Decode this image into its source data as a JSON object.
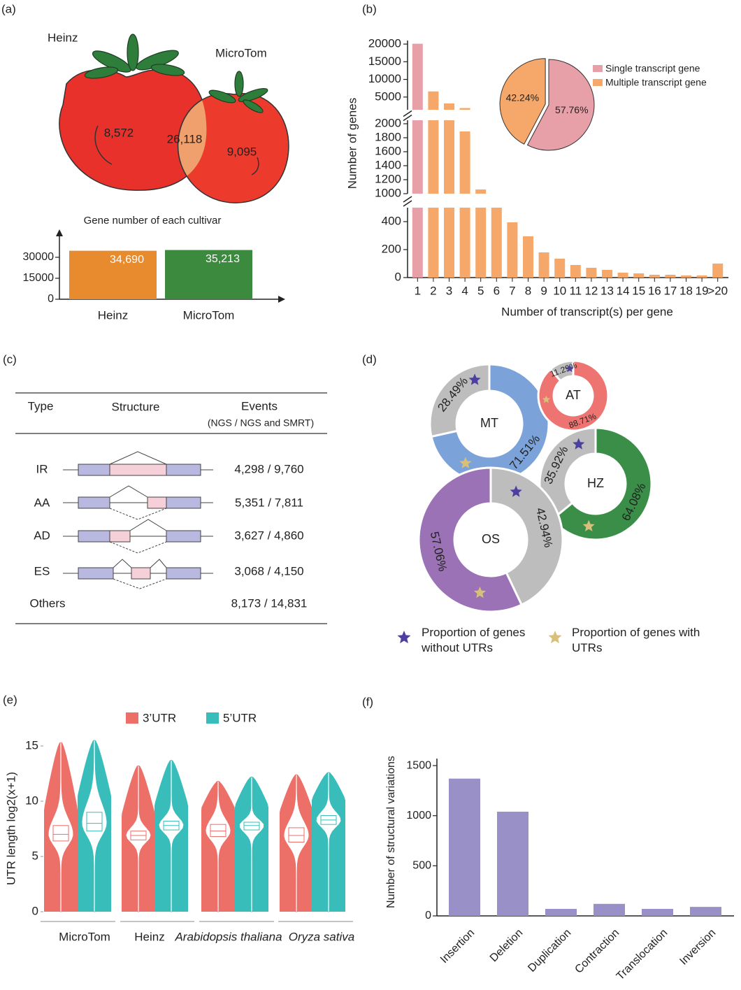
{
  "chart_data": [
    {
      "type": "venn",
      "panel": "(a)",
      "sets": [
        "Heinz",
        "MicroTom"
      ],
      "values": [
        8572,
        26118,
        9095
      ],
      "value_labels": [
        "8,572",
        "26,118",
        "9,095"
      ]
    },
    {
      "type": "bar",
      "title": "Gene number of each cultivar",
      "categories": [
        "Heinz",
        "MicroTom"
      ],
      "values": [
        34690,
        35213
      ],
      "value_labels": [
        "34,690",
        "35,213"
      ],
      "colors": [
        "#e88a2e",
        "#3b8a3e"
      ],
      "ylim": [
        0,
        49000
      ],
      "yticks": [
        0,
        15000,
        30000
      ]
    },
    {
      "type": "broken_bar",
      "panel": "(b)",
      "ylabel": "Number of genes",
      "xlabel": "Number of transcript(s) per gene",
      "categories": [
        "1",
        "2",
        "3",
        "4",
        "5",
        "6",
        "7",
        "8",
        "9",
        "10",
        "11",
        "12",
        "13",
        "14",
        "15",
        "16",
        "17",
        "18",
        "19",
        ">20"
      ],
      "series": [
        {
          "name": "Single transcript gene",
          "color": "#e8a0a8",
          "values": [
            20100,
            null,
            null,
            null,
            null,
            null,
            null,
            null,
            null,
            null,
            null,
            null,
            null,
            null,
            null,
            null,
            null,
            null,
            null,
            null
          ]
        },
        {
          "name": "Multiple transcript gene",
          "color": "#f5a86a",
          "values": [
            null,
            6600,
            3200,
            1890,
            1060,
            700,
            395,
            295,
            180,
            135,
            90,
            70,
            55,
            35,
            30,
            20,
            20,
            15,
            15,
            100
          ]
        }
      ],
      "segments": [
        {
          "ylim": [
            0,
            500
          ],
          "yticks": [
            0,
            200,
            400
          ]
        },
        {
          "ylim": [
            1000,
            2050
          ],
          "yticks": [
            1000,
            1200,
            1400,
            1600,
            1800,
            2000
          ]
        },
        {
          "ylim": [
            1400,
            21000
          ],
          "yticks": [
            5000,
            10000,
            15000,
            20000
          ]
        }
      ]
    },
    {
      "type": "pie",
      "values": [
        57.76,
        42.24
      ],
      "value_labels": [
        "57.76%",
        "42.24%"
      ],
      "colors": [
        "#e8a0a8",
        "#f5a86a"
      ]
    },
    {
      "type": "donut",
      "panel": "(d)",
      "rings": [
        {
          "name": "MT",
          "values": [
            71.51,
            28.49
          ],
          "value_labels": [
            "71.51%",
            "28.49%"
          ],
          "colors": [
            "#7ba3d9",
            "#bdbdbd"
          ]
        },
        {
          "name": "AT",
          "values": [
            88.71,
            11.29
          ],
          "value_labels": [
            "88.71%",
            "11.29%"
          ],
          "colors": [
            "#ee7472",
            "#bdbdbd"
          ]
        },
        {
          "name": "HZ",
          "values": [
            64.08,
            35.92
          ],
          "value_labels": [
            "64.08%",
            "35.92%"
          ],
          "colors": [
            "#3a8e48",
            "#bdbdbd"
          ]
        },
        {
          "name": "OS",
          "values": [
            57.06,
            42.94
          ],
          "value_labels": [
            "57.06%",
            "42.94%"
          ],
          "colors": [
            "#9b72b5",
            "#bdbdbd"
          ]
        }
      ],
      "legend": [
        "Proportion of genes without UTRs",
        "Proportion of genes with UTRs"
      ],
      "legend_colors": [
        "#4b3fa0",
        "#d8c07a"
      ]
    },
    {
      "type": "violin",
      "panel": "(e)",
      "ylabel": "UTR length log2(x+1)",
      "categories": [
        "MicroTom",
        "Heinz",
        "Arabidopsis thaliana",
        "Oryza sativa"
      ],
      "series": [
        {
          "name": "3’UTR",
          "color": "#ec6f68",
          "median": [
            7,
            6.9,
            7.3,
            6.9
          ],
          "q1": [
            6.4,
            6.5,
            6.8,
            6.3
          ],
          "q3": [
            7.8,
            7.3,
            7.9,
            7.6
          ],
          "min": [
            0,
            0,
            0,
            0
          ],
          "max": [
            15.3,
            13.2,
            11.8,
            12.4
          ]
        },
        {
          "name": "5’UTR",
          "color": "#38bdbb",
          "median": [
            8,
            7.8,
            7.8,
            8.3
          ],
          "q1": [
            7.3,
            7.4,
            7.4,
            7.9
          ],
          "q3": [
            9,
            8.2,
            8.1,
            8.7
          ],
          "min": [
            0,
            0,
            0,
            0
          ],
          "max": [
            15.5,
            13.7,
            12.2,
            12.6
          ]
        }
      ],
      "ylim": [
        -0.6,
        15.6
      ],
      "yticks": [
        0,
        5,
        10,
        15
      ]
    },
    {
      "type": "bar",
      "panel": "(f)",
      "ylabel": "Number of structural variations",
      "categories": [
        "Insertion",
        "Deletion",
        "Duplication",
        "Contraction",
        "Translocation",
        "Inversion"
      ],
      "values": [
        1370,
        1040,
        70,
        120,
        70,
        90
      ],
      "color": "#9a90c8",
      "ylim": [
        0,
        1570
      ],
      "yticks": [
        0,
        500,
        1000,
        1500
      ]
    }
  ],
  "table": {
    "panel": "(c)",
    "header": [
      "Type",
      "Structure",
      "Events"
    ],
    "subheader": "(NGS / NGS and SMRT)",
    "rows": [
      [
        "IR",
        "4,298 / 9,760"
      ],
      [
        "AA",
        "5,351 / 7,811"
      ],
      [
        "AD",
        "3,627 / 4,860"
      ],
      [
        "ES",
        "3,068 / 4,150"
      ],
      [
        "Others",
        "8,173 / 14,831"
      ]
    ]
  }
}
